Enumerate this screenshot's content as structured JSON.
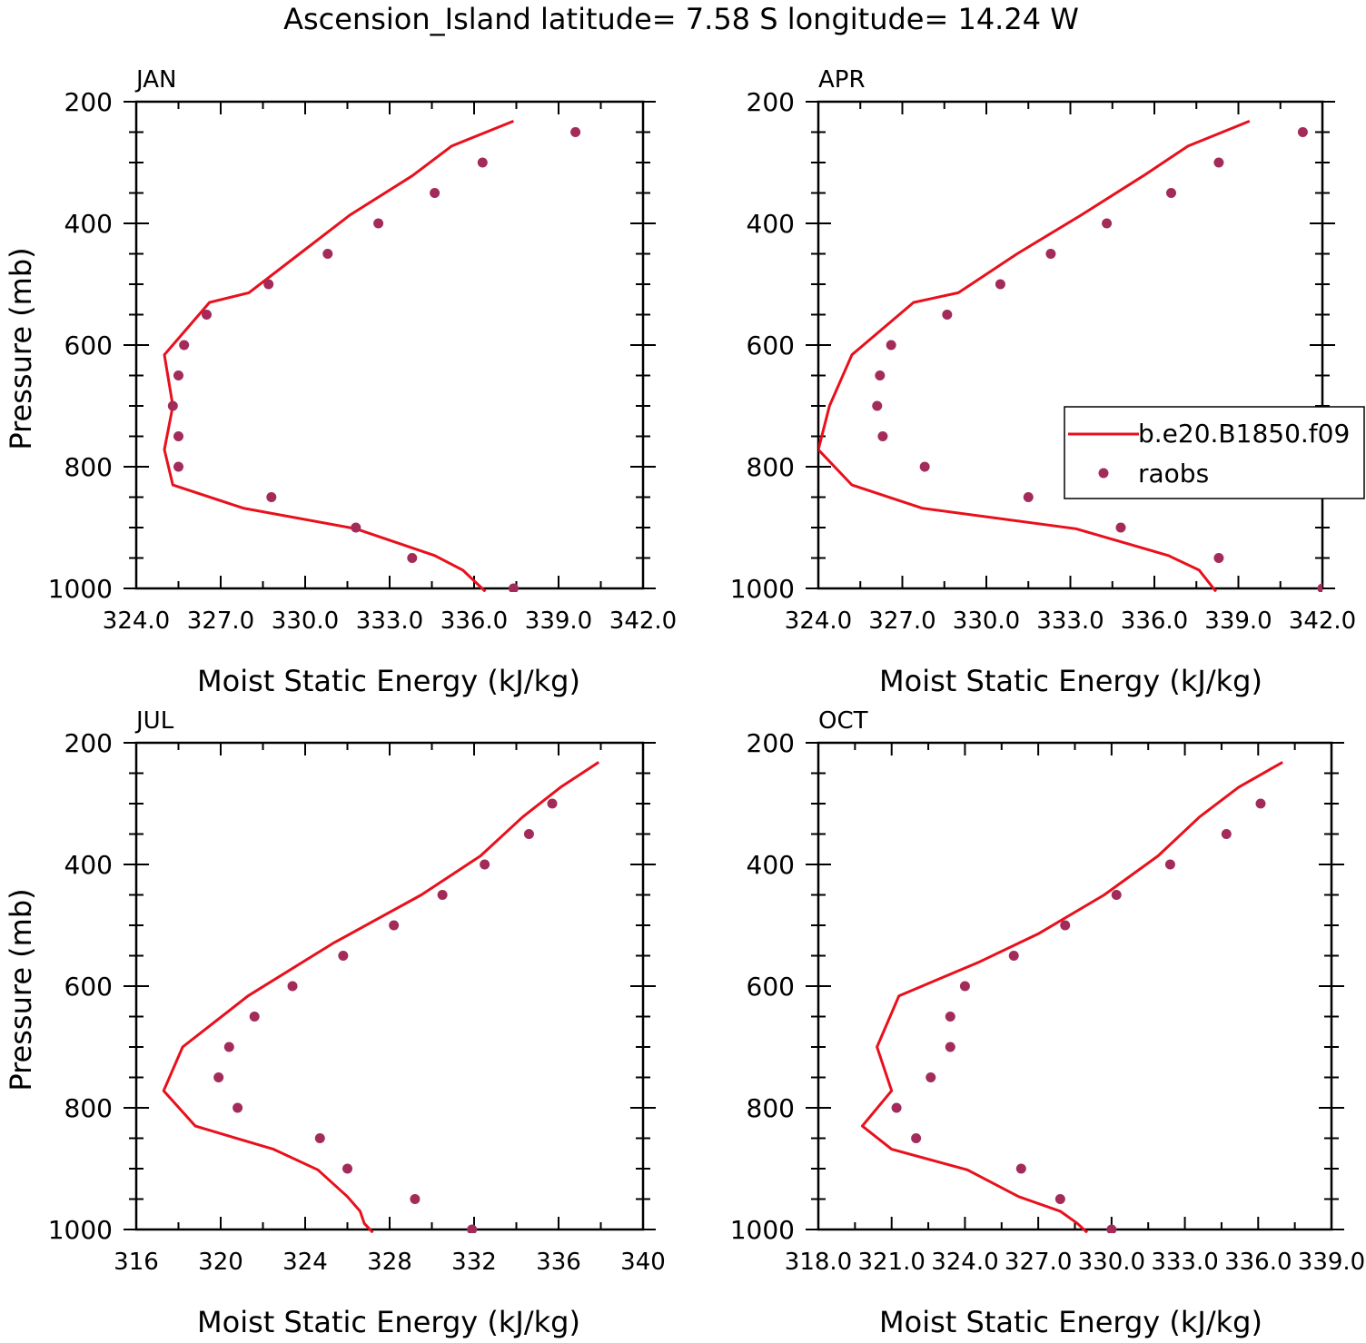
{
  "title": "Ascension_Island  latitude= 7.58 S longitude= 14.24 W",
  "colors": {
    "model": "#e8101c",
    "obs": "#a32b5a",
    "axis": "#000000"
  },
  "legend": {
    "entries": [
      "b.e20.B1850.f09",
      "raobs"
    ]
  },
  "chart_data": [
    {
      "type": "line",
      "panel": "JAN",
      "xlabel": "Moist Static Energy (kJ/kg)",
      "ylabel": "Pressure (mb)",
      "xlim": [
        324,
        342
      ],
      "ylim": [
        200,
        1000
      ],
      "y_inverted": true,
      "x_ticks": [
        "324.0",
        "327.0",
        "330.0",
        "333.0",
        "336.0",
        "339.0",
        "342.0"
      ],
      "y_ticks": [
        "200",
        "400",
        "600",
        "800",
        "1000"
      ],
      "series": [
        {
          "name": "b.e20.B1850.f09",
          "kind": "line",
          "x": [
            337.4,
            335.2,
            333.8,
            331.6,
            329.8,
            328.0,
            326.6,
            325.0,
            325.3,
            325.0,
            325.3,
            327.8,
            331.8,
            334.6,
            335.6,
            336.4
          ],
          "y": [
            232,
            273,
            322,
            386,
            450,
            514,
            530,
            616,
            700,
            772,
            830,
            868,
            902,
            946,
            970,
            1005
          ]
        },
        {
          "name": "raobs",
          "kind": "scatter",
          "x": [
            339.6,
            336.3,
            334.6,
            332.6,
            330.8,
            328.7,
            326.5,
            325.7,
            325.5,
            325.3,
            325.5,
            325.5,
            328.8,
            331.8,
            333.8,
            337.4
          ],
          "y": [
            250,
            300,
            350,
            400,
            450,
            500,
            550,
            600,
            650,
            700,
            750,
            800,
            850,
            900,
            950,
            1000
          ]
        }
      ]
    },
    {
      "type": "line",
      "panel": "APR",
      "xlabel": "Moist Static Energy (kJ/kg)",
      "ylabel": "",
      "xlim": [
        324,
        342
      ],
      "ylim": [
        200,
        1000
      ],
      "y_inverted": true,
      "x_ticks": [
        "324.0",
        "327.0",
        "330.0",
        "333.0",
        "336.0",
        "339.0",
        "342.0"
      ],
      "y_ticks": [
        "200",
        "400",
        "600",
        "800",
        "1000"
      ],
      "legend": {
        "position": "right",
        "entries": [
          "b.e20.B1850.f09",
          "raobs"
        ]
      },
      "series": [
        {
          "name": "b.e20.B1850.f09",
          "kind": "line",
          "x": [
            339.4,
            337.2,
            335.6,
            333.4,
            331.1,
            329.0,
            327.4,
            325.2,
            324.4,
            324.0,
            325.2,
            327.7,
            333.2,
            336.5,
            337.6,
            338.2
          ],
          "y": [
            232,
            273,
            322,
            386,
            450,
            514,
            530,
            616,
            700,
            772,
            830,
            868,
            902,
            946,
            970,
            1005
          ]
        },
        {
          "name": "raobs",
          "kind": "scatter",
          "x": [
            341.3,
            338.3,
            336.6,
            334.3,
            332.3,
            330.5,
            328.6,
            326.6,
            326.2,
            326.1,
            326.3,
            327.8,
            331.5,
            334.8,
            338.3,
            342.0
          ],
          "y": [
            250,
            300,
            350,
            400,
            450,
            500,
            550,
            600,
            650,
            700,
            750,
            800,
            850,
            900,
            950,
            1000
          ]
        }
      ]
    },
    {
      "type": "line",
      "panel": "JUL",
      "xlabel": "Moist Static Energy (kJ/kg)",
      "ylabel": "Pressure (mb)",
      "xlim": [
        316,
        340
      ],
      "ylim": [
        200,
        1000
      ],
      "y_inverted": true,
      "x_ticks": [
        "316",
        "320",
        "324",
        "328",
        "332",
        "336",
        "340"
      ],
      "y_ticks": [
        "200",
        "400",
        "600",
        "800",
        "1000"
      ],
      "series": [
        {
          "name": "b.e20.B1850.f09",
          "kind": "line",
          "x": [
            337.9,
            336.1,
            334.3,
            332.3,
            329.5,
            325.3,
            321.3,
            318.2,
            317.3,
            318.8,
            322.5,
            324.6,
            326.0,
            326.6,
            326.8,
            327.2
          ],
          "y": [
            232,
            273,
            322,
            386,
            450,
            530,
            616,
            700,
            772,
            830,
            868,
            902,
            946,
            970,
            990,
            1005
          ]
        },
        {
          "name": "raobs",
          "kind": "scatter",
          "x": [
            335.7,
            334.6,
            332.5,
            330.5,
            328.2,
            325.8,
            323.4,
            321.6,
            320.4,
            319.9,
            320.8,
            324.7,
            326.0,
            329.2,
            331.9
          ],
          "y": [
            300,
            350,
            400,
            450,
            500,
            550,
            600,
            650,
            700,
            750,
            800,
            850,
            900,
            950,
            1000
          ]
        }
      ]
    },
    {
      "type": "line",
      "panel": "OCT",
      "xlabel": "Moist Static Energy (kJ/kg)",
      "ylabel": "",
      "xlim": [
        318.0,
        339.0
      ],
      "ylim": [
        200,
        1000
      ],
      "y_inverted": true,
      "x_ticks": [
        "318.0",
        "321.0",
        "324.0",
        "327.0",
        "330.0",
        "333.0",
        "336.0",
        "339.0"
      ],
      "y_ticks": [
        "200",
        "400",
        "600",
        "800",
        "1000"
      ],
      "series": [
        {
          "name": "b.e20.B1850.f09",
          "kind": "line",
          "x": [
            337.0,
            335.2,
            333.6,
            331.9,
            329.7,
            327.0,
            324.6,
            321.3,
            320.4,
            321.0,
            319.8,
            321.0,
            324.1,
            326.2,
            327.9,
            328.6,
            329.0
          ],
          "y": [
            232,
            273,
            322,
            386,
            450,
            514,
            560,
            616,
            700,
            772,
            830,
            868,
            902,
            946,
            970,
            990,
            1005
          ]
        },
        {
          "name": "raobs",
          "kind": "scatter",
          "x": [
            336.1,
            334.7,
            332.4,
            330.2,
            328.1,
            326.0,
            324.0,
            323.4,
            323.4,
            322.6,
            321.2,
            322.0,
            326.3,
            327.9,
            330.0
          ],
          "y": [
            300,
            350,
            400,
            450,
            500,
            550,
            600,
            650,
            700,
            750,
            800,
            850,
            900,
            950,
            1000
          ]
        }
      ]
    }
  ]
}
